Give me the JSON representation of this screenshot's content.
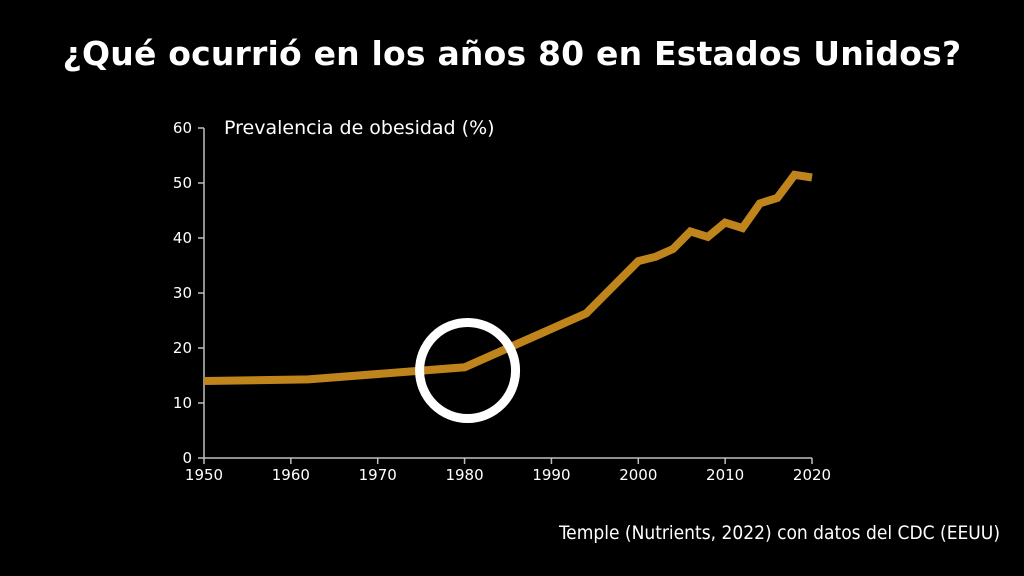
{
  "slide": {
    "title": "¿Qué ocurrió en los años 80 en Estados Unidos?",
    "source": "Temple (Nutrients, 2022) con datos del CDC (EEUU)"
  },
  "colors": {
    "background": "#000000",
    "line": "#C0841C",
    "axis": "#bfbfbf",
    "highlight_circle": "#ffffff",
    "text": "#ffffff"
  },
  "chart_data": {
    "type": "line",
    "title": "",
    "ylabel": "Prevalencia de obesidad (%)",
    "xlabel": "",
    "xlim": [
      1950,
      2020
    ],
    "ylim": [
      0,
      60
    ],
    "x_ticks": [
      1950,
      1960,
      1970,
      1980,
      1990,
      2000,
      2010,
      2020
    ],
    "y_ticks": [
      0,
      10,
      20,
      30,
      40,
      50,
      60
    ],
    "grid": false,
    "legend": "none",
    "series": [
      {
        "name": "Prevalencia de obesidad (%)",
        "x": [
          1950,
          1962,
          1980,
          1994,
          2000,
          2002,
          2004,
          2006,
          2008,
          2010,
          2012,
          2014,
          2016,
          2018,
          2020
        ],
        "values": [
          14.0,
          14.3,
          16.5,
          26.3,
          35.8,
          36.6,
          38.0,
          41.2,
          40.2,
          42.8,
          41.8,
          46.3,
          47.3,
          51.5,
          51.0
        ]
      }
    ],
    "annotations": [
      {
        "type": "circle-highlight",
        "x": 1980,
        "y": 17
      }
    ]
  }
}
